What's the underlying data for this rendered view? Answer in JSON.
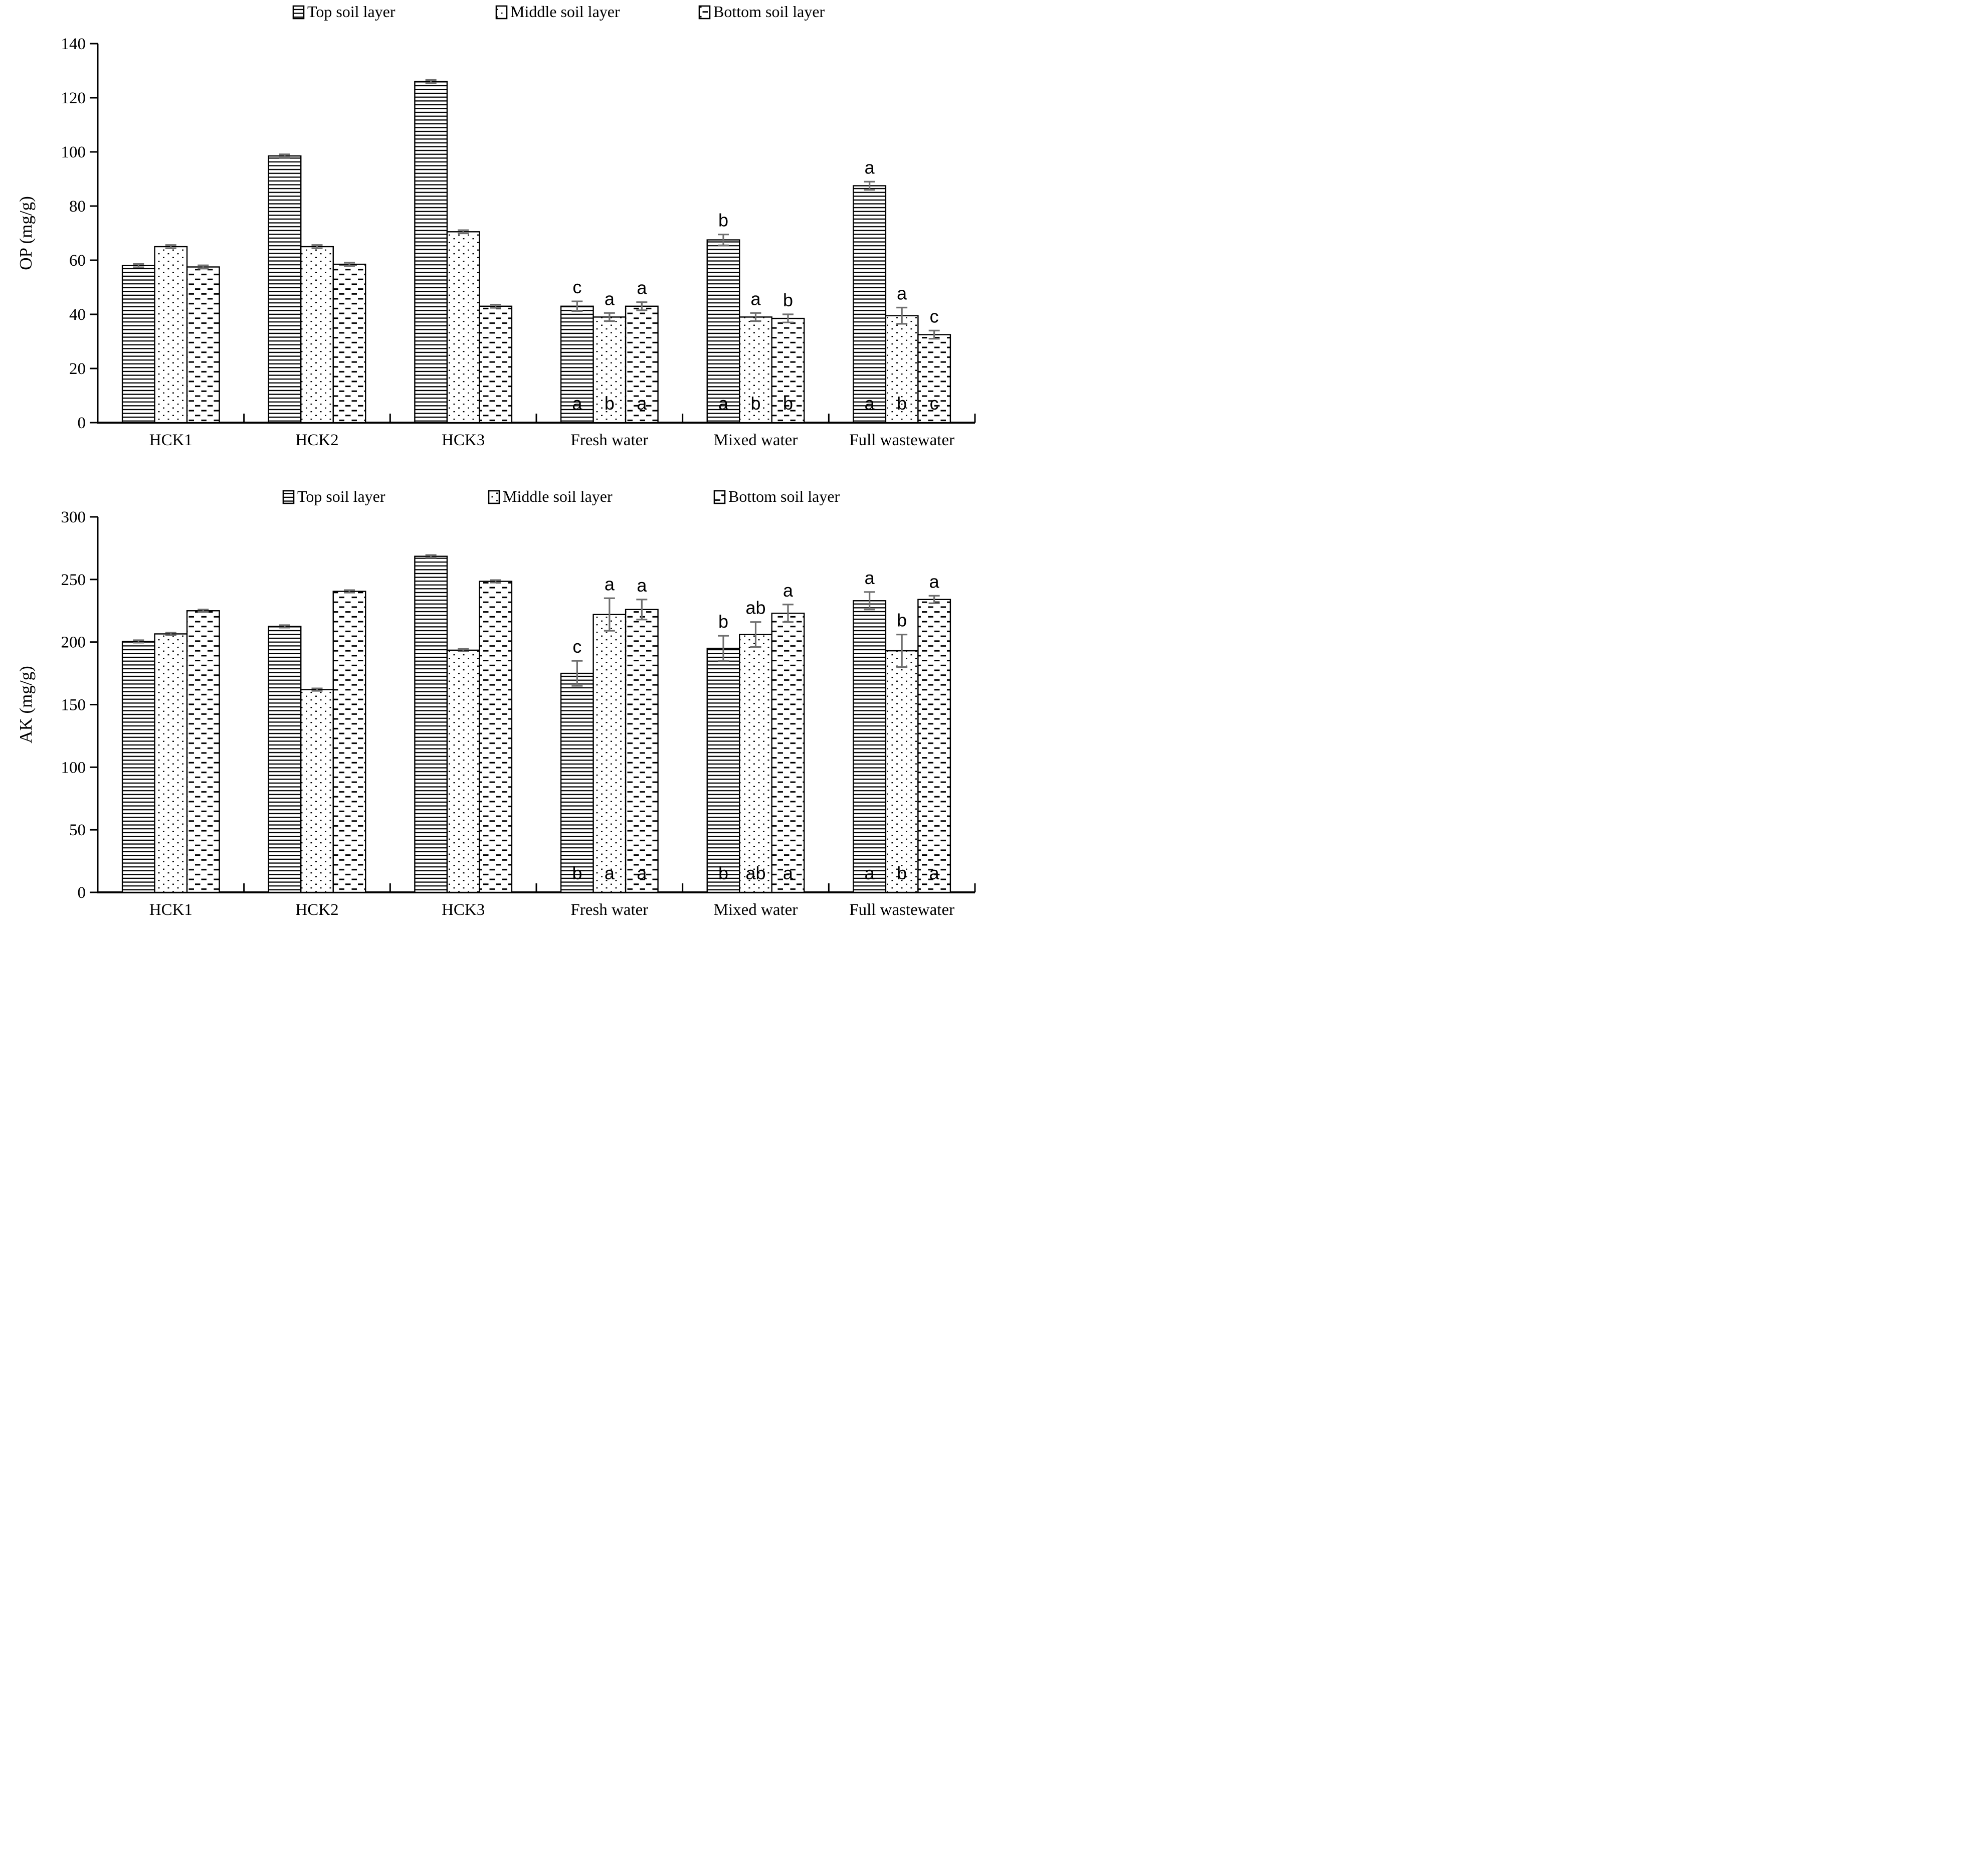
{
  "figure": {
    "kind": "two stacked grouped bar charts with hatch-pattern fills, error bars and significance letters",
    "legend": {
      "items": [
        {
          "label": "Top soil layer",
          "pattern": "horizontal-lines"
        },
        {
          "label": "Middle soil layer",
          "pattern": "dots"
        },
        {
          "label": "Bottom soil layer",
          "pattern": "dashes"
        }
      ]
    },
    "colors": {
      "bar_fill": "#ffffff",
      "bar_stroke": "#000000",
      "error_bar": "#6f6f6f",
      "text": "#000000",
      "background": "#ffffff"
    }
  },
  "chart_data": [
    {
      "type": "bar",
      "ylabel": "OP (mg/g)",
      "ylim": [
        0,
        140
      ],
      "yticks": [
        0,
        20,
        40,
        60,
        80,
        100,
        120,
        140
      ],
      "grid": false,
      "legend_position": "top-center",
      "categories": [
        "HCK1",
        "HCK2",
        "HCK3",
        "Fresh water",
        "Mixed water",
        "Full wastewater"
      ],
      "series": [
        {
          "name": "Top soil layer",
          "pattern": "horizontal-lines",
          "values": [
            58,
            98.5,
            126,
            43,
            67.5,
            87.5
          ],
          "errors": [
            0.6,
            0.6,
            0.6,
            1.8,
            2,
            1.5
          ],
          "letters_above": [
            "",
            "",
            "",
            "c",
            "b",
            "a"
          ],
          "letters_inside": [
            "",
            "",
            "",
            "a",
            "a",
            "a"
          ]
        },
        {
          "name": "Middle soil layer",
          "pattern": "dots",
          "values": [
            65,
            65,
            70.5,
            39,
            39,
            39.5
          ],
          "errors": [
            0.6,
            0.6,
            0.6,
            1.5,
            1.5,
            3
          ],
          "letters_above": [
            "",
            "",
            "",
            "a",
            "a",
            "a"
          ],
          "letters_inside": [
            "",
            "",
            "",
            "b",
            "b",
            "b"
          ]
        },
        {
          "name": "Bottom soil layer",
          "pattern": "dashes",
          "values": [
            57.5,
            58.5,
            43,
            43,
            38.5,
            32.5
          ],
          "errors": [
            0.6,
            0.6,
            0.6,
            1.5,
            1.5,
            1.5
          ],
          "letters_above": [
            "",
            "",
            "",
            "a",
            "b",
            "c"
          ],
          "letters_inside": [
            "",
            "",
            "",
            "a",
            "b",
            "c"
          ]
        }
      ]
    },
    {
      "type": "bar",
      "ylabel": "AK (mg/g)",
      "ylim": [
        0,
        300
      ],
      "yticks": [
        0,
        50,
        100,
        150,
        200,
        250,
        300
      ],
      "grid": false,
      "legend_position": "top-center",
      "categories": [
        "HCK1",
        "HCK2",
        "HCK3",
        "Fresh water",
        "Mixed water",
        "Full wastewater"
      ],
      "series": [
        {
          "name": "Top soil layer",
          "pattern": "horizontal-lines",
          "values": [
            200.5,
            212.5,
            268.5,
            175,
            195,
            233
          ],
          "errors": [
            1,
            1,
            1,
            10,
            10,
            7
          ],
          "letters_above": [
            "",
            "",
            "",
            "c",
            "b",
            "a"
          ],
          "letters_inside": [
            "",
            "",
            "",
            "b",
            "b",
            "a"
          ]
        },
        {
          "name": "Middle soil layer",
          "pattern": "dots",
          "values": [
            206.5,
            162,
            193.5,
            222,
            206,
            193
          ],
          "errors": [
            1,
            1,
            1,
            13,
            10,
            13
          ],
          "letters_above": [
            "",
            "",
            "",
            "a",
            "ab",
            "b"
          ],
          "letters_inside": [
            "",
            "",
            "",
            "a",
            "ab",
            "b"
          ]
        },
        {
          "name": "Bottom soil layer",
          "pattern": "dashes",
          "values": [
            225,
            240.5,
            248.5,
            226,
            223,
            234
          ],
          "errors": [
            1,
            1,
            1,
            8,
            7,
            3
          ],
          "letters_above": [
            "",
            "",
            "",
            "a",
            "a",
            "a"
          ],
          "letters_inside": [
            "",
            "",
            "",
            "a",
            "a",
            "a"
          ]
        }
      ]
    }
  ]
}
